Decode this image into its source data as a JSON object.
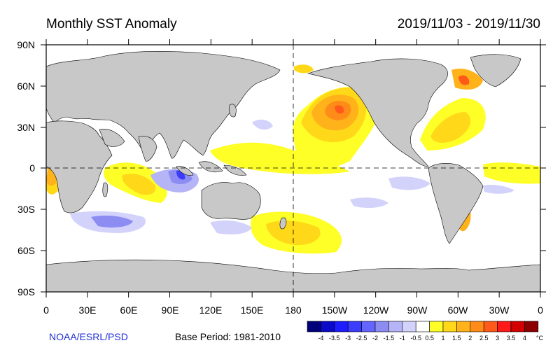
{
  "header": {
    "title": "Monthly SST Anomaly",
    "date_range": "2019/11/03 - 2019/11/30"
  },
  "map": {
    "lat_labels": [
      "90N",
      "60N",
      "30N",
      "0",
      "30S",
      "60S",
      "90S"
    ],
    "lon_labels": [
      "0",
      "30E",
      "60E",
      "90E",
      "120E",
      "150E",
      "180",
      "150W",
      "120W",
      "90W",
      "60W",
      "30W",
      "0"
    ]
  },
  "footer": {
    "credit": "NOAA/ESRL/PSD",
    "base_period": "Base Period: 1981-2010"
  },
  "colorbar": {
    "unit": "°C",
    "labels": [
      "-4",
      "-3.5",
      "-3",
      "-2.5",
      "-2",
      "-1.5",
      "-1",
      "-0.5",
      "0.5",
      "1",
      "1.5",
      "2",
      "2.5",
      "3",
      "3.5",
      "4"
    ],
    "colors": [
      "#00007a",
      "#0a0ac8",
      "#1d1dff",
      "#3c3cff",
      "#6464ff",
      "#8c8cf2",
      "#b4b4f7",
      "#d2d2fb",
      "#ffffff",
      "#ffff28",
      "#ffd919",
      "#ffb219",
      "#ff8c19",
      "#ff5a19",
      "#ff1919",
      "#d20000",
      "#8c0000"
    ]
  }
}
